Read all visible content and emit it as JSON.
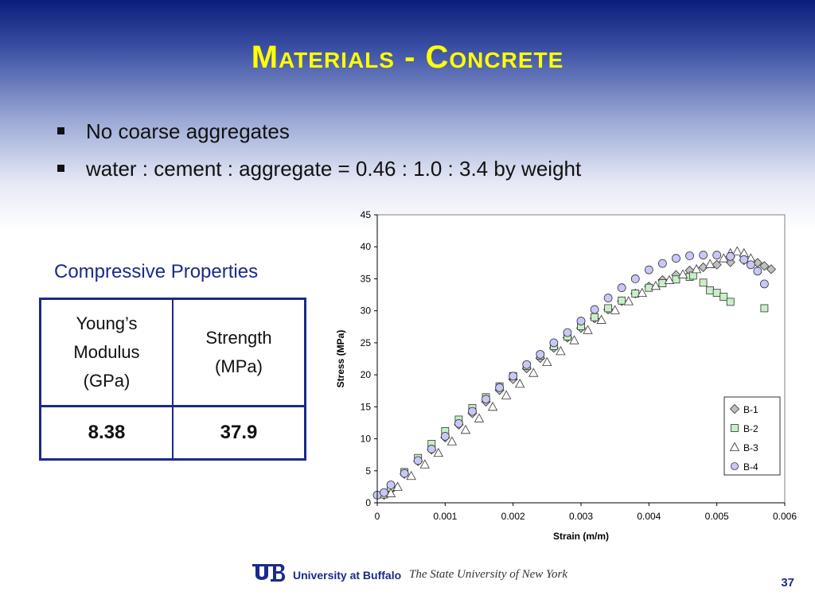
{
  "title": {
    "first": "M",
    "rest": "aterials - ",
    "first2": "C",
    "rest2": "oncrete"
  },
  "bullets": [
    "No coarse aggregates",
    "water : cement : aggregate = 0.46 : 1.0 : 3.4 by weight"
  ],
  "table": {
    "heading": "Compressive Properties",
    "col1": [
      "Young’s",
      "Modulus",
      "(GPa)"
    ],
    "col2": [
      "Strength",
      "(MPa)"
    ],
    "values": [
      "8.38",
      "37.9"
    ]
  },
  "footer": {
    "university": "University at Buffalo",
    "subtitle": "The State University of New York",
    "page": "37"
  },
  "chart_data": {
    "type": "scatter",
    "xlabel": "Strain (m/m)",
    "ylabel": "Stress (MPa)",
    "xlim": [
      0,
      0.006
    ],
    "ylim": [
      0,
      45
    ],
    "xticks": [
      "0",
      "0.001",
      "0.002",
      "0.003",
      "0.004",
      "0.005",
      "0.006"
    ],
    "yticks": [
      "0",
      "5",
      "10",
      "15",
      "20",
      "25",
      "30",
      "35",
      "40",
      "45"
    ],
    "legend_position": "bottom-right",
    "series": [
      {
        "name": "B-1",
        "marker": "diamond",
        "color": "#c0c0c0",
        "points": [
          [
            0.0001,
            1.2
          ],
          [
            0.0002,
            2.0
          ],
          [
            0.0004,
            4.5
          ],
          [
            0.0006,
            6.5
          ],
          [
            0.0008,
            8.3
          ],
          [
            0.001,
            10.2
          ],
          [
            0.0012,
            12.2
          ],
          [
            0.0014,
            14.0
          ],
          [
            0.0016,
            15.8
          ],
          [
            0.0018,
            17.6
          ],
          [
            0.002,
            19.3
          ],
          [
            0.0022,
            21.0
          ],
          [
            0.0024,
            22.6
          ],
          [
            0.0026,
            24.2
          ],
          [
            0.0028,
            25.8
          ],
          [
            0.003,
            27.3
          ],
          [
            0.0032,
            28.8
          ],
          [
            0.0034,
            30.2
          ],
          [
            0.0036,
            31.5
          ],
          [
            0.0038,
            32.7
          ],
          [
            0.004,
            33.8
          ],
          [
            0.0042,
            34.8
          ],
          [
            0.0044,
            35.6
          ],
          [
            0.0046,
            36.3
          ],
          [
            0.0048,
            36.8
          ],
          [
            0.005,
            37.2
          ],
          [
            0.0052,
            37.6
          ],
          [
            0.0054,
            37.9
          ],
          [
            0.0055,
            37.8
          ],
          [
            0.0056,
            37.5
          ],
          [
            0.0057,
            37.0
          ],
          [
            0.0058,
            36.5
          ]
        ]
      },
      {
        "name": "B-2",
        "marker": "square",
        "color": "#c8f0c8",
        "points": [
          [
            0.0001,
            1.3
          ],
          [
            0.0002,
            2.4
          ],
          [
            0.0004,
            4.8
          ],
          [
            0.0006,
            7.0
          ],
          [
            0.0008,
            9.2
          ],
          [
            0.001,
            11.2
          ],
          [
            0.0012,
            13.0
          ],
          [
            0.0014,
            14.8
          ],
          [
            0.0016,
            16.5
          ],
          [
            0.0018,
            18.2
          ],
          [
            0.002,
            19.8
          ],
          [
            0.0022,
            21.4
          ],
          [
            0.0024,
            23.0
          ],
          [
            0.0026,
            24.5
          ],
          [
            0.0028,
            26.0
          ],
          [
            0.003,
            27.6
          ],
          [
            0.0032,
            29.0
          ],
          [
            0.0034,
            30.4
          ],
          [
            0.0036,
            31.6
          ],
          [
            0.0038,
            32.7
          ],
          [
            0.004,
            33.6
          ],
          [
            0.0042,
            34.3
          ],
          [
            0.0044,
            34.9
          ],
          [
            0.0046,
            35.3
          ],
          [
            0.00465,
            35.5
          ],
          [
            0.0048,
            34.4
          ],
          [
            0.0049,
            33.2
          ],
          [
            0.005,
            32.8
          ],
          [
            0.0051,
            32.2
          ],
          [
            0.0052,
            31.4
          ],
          [
            0.0057,
            30.4
          ]
        ]
      },
      {
        "name": "B-3",
        "marker": "triangle",
        "color": "#ffffff",
        "points": [
          [
            0.0002,
            1.5
          ],
          [
            0.0003,
            2.5
          ],
          [
            0.0005,
            4.2
          ],
          [
            0.0007,
            6.0
          ],
          [
            0.0009,
            7.8
          ],
          [
            0.0011,
            9.6
          ],
          [
            0.0013,
            11.4
          ],
          [
            0.0015,
            13.2
          ],
          [
            0.0017,
            15.0
          ],
          [
            0.0019,
            16.8
          ],
          [
            0.0021,
            18.6
          ],
          [
            0.0023,
            20.3
          ],
          [
            0.0025,
            22.0
          ],
          [
            0.0027,
            23.7
          ],
          [
            0.0029,
            25.4
          ],
          [
            0.0031,
            27.0
          ],
          [
            0.0033,
            28.6
          ],
          [
            0.0035,
            30.1
          ],
          [
            0.0037,
            31.5
          ],
          [
            0.0039,
            32.8
          ],
          [
            0.0041,
            33.9
          ],
          [
            0.0043,
            34.8
          ],
          [
            0.0045,
            35.7
          ],
          [
            0.0047,
            36.5
          ],
          [
            0.0049,
            37.3
          ],
          [
            0.0051,
            38.2
          ],
          [
            0.0052,
            39.0
          ],
          [
            0.0053,
            39.3
          ],
          [
            0.0054,
            39.0
          ],
          [
            0.0055,
            38.2
          ]
        ]
      },
      {
        "name": "B-4",
        "marker": "circle",
        "color": "#c8c8f8",
        "points": [
          [
            0.0,
            1.2
          ],
          [
            0.0001,
            1.6
          ],
          [
            0.0002,
            2.8
          ],
          [
            0.0004,
            4.6
          ],
          [
            0.0006,
            6.6
          ],
          [
            0.0008,
            8.4
          ],
          [
            0.001,
            10.4
          ],
          [
            0.0012,
            12.4
          ],
          [
            0.0014,
            14.3
          ],
          [
            0.0016,
            16.2
          ],
          [
            0.0018,
            18.0
          ],
          [
            0.002,
            19.8
          ],
          [
            0.0022,
            21.6
          ],
          [
            0.0024,
            23.2
          ],
          [
            0.0026,
            25.0
          ],
          [
            0.0028,
            26.6
          ],
          [
            0.003,
            28.4
          ],
          [
            0.0032,
            30.2
          ],
          [
            0.0034,
            32.0
          ],
          [
            0.0036,
            33.6
          ],
          [
            0.0038,
            35.0
          ],
          [
            0.004,
            36.4
          ],
          [
            0.0042,
            37.4
          ],
          [
            0.0044,
            38.2
          ],
          [
            0.0046,
            38.6
          ],
          [
            0.0048,
            38.7
          ],
          [
            0.005,
            38.7
          ],
          [
            0.0052,
            38.5
          ],
          [
            0.0054,
            38.0
          ],
          [
            0.0055,
            37.2
          ],
          [
            0.0056,
            36.2
          ],
          [
            0.0057,
            34.2
          ]
        ]
      }
    ]
  }
}
